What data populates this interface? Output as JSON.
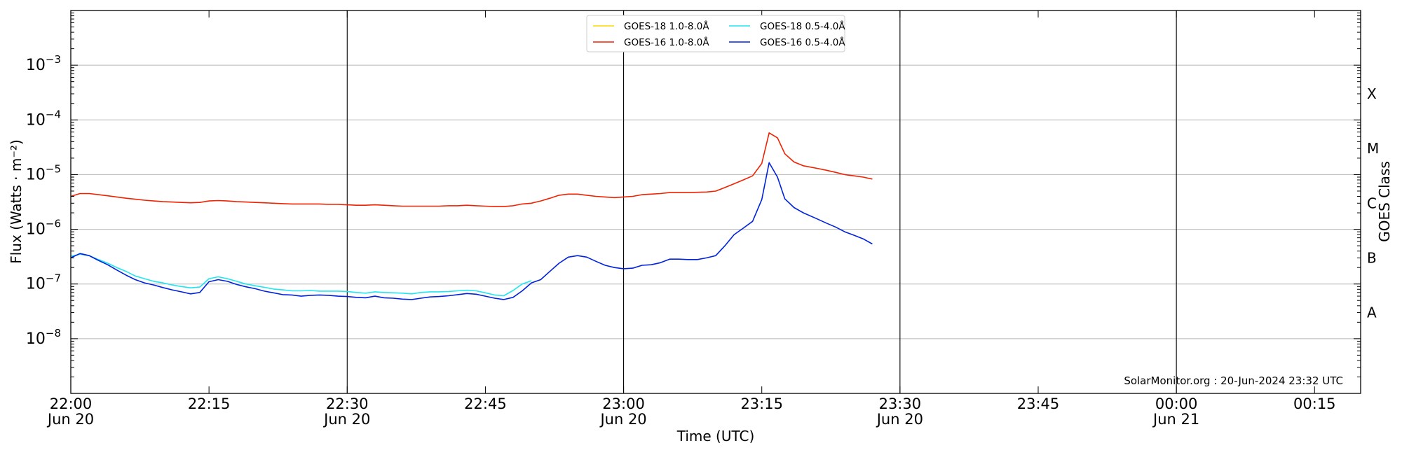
{
  "chart_data": {
    "type": "line",
    "title": "",
    "xlabel": "Time (UTC)",
    "ylabel": "Flux (Watts · m⁻²)",
    "y2label": "GOES Class",
    "yscale": "log",
    "ylim": [
      1e-09,
      0.01
    ],
    "xlim_minutes": [
      0,
      140
    ],
    "x_ticks": [
      {
        "minutes": 0,
        "time": "22:00",
        "date": "Jun 20",
        "vline": false
      },
      {
        "minutes": 15,
        "time": "22:15",
        "date": "",
        "vline": false
      },
      {
        "minutes": 30,
        "time": "22:30",
        "date": "Jun 20",
        "vline": true
      },
      {
        "minutes": 45,
        "time": "22:45",
        "date": "",
        "vline": false
      },
      {
        "minutes": 60,
        "time": "23:00",
        "date": "Jun 20",
        "vline": true
      },
      {
        "minutes": 75,
        "time": "23:15",
        "date": "",
        "vline": false
      },
      {
        "minutes": 90,
        "time": "23:30",
        "date": "Jun 20",
        "vline": true
      },
      {
        "minutes": 105,
        "time": "23:45",
        "date": "",
        "vline": false
      },
      {
        "minutes": 120,
        "time": "00:00",
        "date": "Jun 21",
        "vline": true
      },
      {
        "minutes": 135,
        "time": "00:15",
        "date": "",
        "vline": false
      }
    ],
    "y_ticks": [
      {
        "exp": -8,
        "base": "10",
        "sup": "−8"
      },
      {
        "exp": -7,
        "base": "10",
        "sup": "−7"
      },
      {
        "exp": -6,
        "base": "10",
        "sup": "−6"
      },
      {
        "exp": -5,
        "base": "10",
        "sup": "−5"
      },
      {
        "exp": -4,
        "base": "10",
        "sup": "−4"
      },
      {
        "exp": -3,
        "base": "10",
        "sup": "−3"
      }
    ],
    "goes_classes": [
      {
        "label": "A",
        "value": 3e-08
      },
      {
        "label": "B",
        "value": 3e-07
      },
      {
        "label": "C",
        "value": 3e-06
      },
      {
        "label": "M",
        "value": 3e-05
      },
      {
        "label": "X",
        "value": 0.0003
      }
    ],
    "grid": "horizontal at decades",
    "legend_position": "top-center",
    "legend": [
      {
        "name": "GOES-18 1.0-8.0Å",
        "color": "#ffd700"
      },
      {
        "name": "GOES-18 0.5-4.0Å",
        "color": "#22e5f0"
      },
      {
        "name": "GOES-16 1.0-8.0Å",
        "color": "#ee2200"
      },
      {
        "name": "GOES-16 0.5-4.0Å",
        "color": "#0022dd"
      }
    ],
    "series": [
      {
        "name": "GOES-16 1.0-8.0Å",
        "color": "#ee2200",
        "x": [
          0,
          1,
          2,
          3,
          4,
          5,
          6,
          7,
          8,
          9,
          10,
          11,
          12,
          13,
          14,
          15,
          16,
          17,
          18,
          19,
          20,
          21,
          22,
          23,
          24,
          25,
          26,
          27,
          28,
          29,
          30,
          31,
          32,
          33,
          34,
          35,
          36,
          37,
          38,
          39,
          40,
          41,
          42,
          43,
          44,
          45,
          46,
          47,
          48,
          49,
          50,
          51,
          52,
          53,
          54,
          55,
          56,
          57,
          58,
          59,
          60,
          61,
          62,
          63,
          64,
          65,
          66,
          67,
          68,
          69,
          70,
          71,
          72,
          73,
          74,
          75,
          75.8,
          76.7,
          77.5,
          78.5,
          79.5,
          81,
          82,
          83,
          84,
          85,
          86,
          87
        ],
        "y": [
          4e-06,
          4.5e-06,
          4.5e-06,
          4.3e-06,
          4.1e-06,
          3.9e-06,
          3.7e-06,
          3.55e-06,
          3.4e-06,
          3.3e-06,
          3.2e-06,
          3.15e-06,
          3.1e-06,
          3.05e-06,
          3.1e-06,
          3.3e-06,
          3.35e-06,
          3.3e-06,
          3.2e-06,
          3.15e-06,
          3.1e-06,
          3.05e-06,
          3e-06,
          2.95e-06,
          2.9e-06,
          2.9e-06,
          2.9e-06,
          2.9e-06,
          2.85e-06,
          2.85e-06,
          2.8e-06,
          2.75e-06,
          2.75e-06,
          2.8e-06,
          2.75e-06,
          2.7e-06,
          2.65e-06,
          2.65e-06,
          2.65e-06,
          2.65e-06,
          2.65e-06,
          2.7e-06,
          2.7e-06,
          2.75e-06,
          2.7e-06,
          2.65e-06,
          2.6e-06,
          2.6e-06,
          2.7e-06,
          2.9e-06,
          3e-06,
          3.3e-06,
          3.7e-06,
          4.2e-06,
          4.4e-06,
          4.4e-06,
          4.2e-06,
          4e-06,
          3.9e-06,
          3.8e-06,
          3.9e-06,
          4e-06,
          4.3e-06,
          4.4e-06,
          4.5e-06,
          4.7e-06,
          4.7e-06,
          4.7e-06,
          4.75e-06,
          4.8e-06,
          5e-06,
          5.8e-06,
          6.8e-06,
          8e-06,
          9.5e-06,
          1.6e-05,
          5.8e-05,
          4.7e-05,
          2.4e-05,
          1.7e-05,
          1.45e-05,
          1.3e-05,
          1.2e-05,
          1.1e-05,
          1e-05,
          9.5e-06,
          9e-06,
          8.3e-06
        ]
      },
      {
        "name": "GOES-18 0.5-4.0Å",
        "color": "#22e5f0",
        "x": [
          0,
          1,
          2,
          3,
          4,
          5,
          6,
          7,
          8,
          9,
          10,
          11,
          12,
          13,
          14,
          15,
          16,
          17,
          18,
          19,
          20,
          21,
          22,
          23,
          24,
          25,
          26,
          27,
          28,
          29,
          30,
          31,
          32,
          33,
          34,
          35,
          36,
          37,
          38,
          39,
          40,
          41,
          42,
          43,
          44,
          45,
          46,
          47,
          48,
          49,
          50
        ],
        "y": [
          3.2e-07,
          3.5e-07,
          3.3e-07,
          2.8e-07,
          2.4e-07,
          2e-07,
          1.7e-07,
          1.4e-07,
          1.25e-07,
          1.12e-07,
          1.05e-07,
          9.6e-08,
          9e-08,
          8.5e-08,
          8.8e-08,
          1.25e-07,
          1.35e-07,
          1.25e-07,
          1.12e-07,
          1e-07,
          9.3e-08,
          8.7e-08,
          8.1e-08,
          7.8e-08,
          7.5e-08,
          7.5e-08,
          7.6e-08,
          7.4e-08,
          7.4e-08,
          7.4e-08,
          7.3e-08,
          7e-08,
          6.8e-08,
          7.2e-08,
          7e-08,
          6.9e-08,
          6.8e-08,
          6.6e-08,
          7e-08,
          7.2e-08,
          7.2e-08,
          7.3e-08,
          7.5e-08,
          7.7e-08,
          7.5e-08,
          6.9e-08,
          6.3e-08,
          6.1e-08,
          7.6e-08,
          1e-07,
          1.15e-07
        ]
      },
      {
        "name": "GOES-16 0.5-4.0Å",
        "color": "#0022dd",
        "x": [
          0,
          1,
          2,
          3,
          4,
          5,
          6,
          7,
          8,
          9,
          10,
          11,
          12,
          13,
          14,
          15,
          16,
          17,
          18,
          19,
          20,
          21,
          22,
          23,
          24,
          25,
          26,
          27,
          28,
          29,
          30,
          31,
          32,
          33,
          34,
          35,
          36,
          37,
          38,
          39,
          40,
          41,
          42,
          43,
          44,
          45,
          46,
          47,
          48,
          49,
          50,
          51,
          52,
          53,
          54,
          55,
          56,
          57,
          58,
          59,
          60,
          61,
          62,
          63,
          64,
          65,
          66,
          67,
          68,
          69,
          70,
          71,
          72,
          73,
          74,
          75,
          75.8,
          76.7,
          77.5,
          78.5,
          79.5,
          81,
          82,
          83,
          84,
          85,
          86,
          87
        ],
        "y": [
          3e-07,
          3.6e-07,
          3.3e-07,
          2.7e-07,
          2.25e-07,
          1.8e-07,
          1.45e-07,
          1.2e-07,
          1.05e-07,
          9.6e-08,
          8.6e-08,
          7.8e-08,
          7.2e-08,
          6.6e-08,
          7e-08,
          1.1e-07,
          1.2e-07,
          1.12e-07,
          9.8e-08,
          8.9e-08,
          8.2e-08,
          7.4e-08,
          6.9e-08,
          6.4e-08,
          6.3e-08,
          6e-08,
          6.2e-08,
          6.3e-08,
          6.2e-08,
          6e-08,
          5.9e-08,
          5.7e-08,
          5.6e-08,
          6e-08,
          5.6e-08,
          5.5e-08,
          5.3e-08,
          5.2e-08,
          5.5e-08,
          5.8e-08,
          5.9e-08,
          6.1e-08,
          6.4e-08,
          6.7e-08,
          6.5e-08,
          6e-08,
          5.5e-08,
          5.2e-08,
          5.7e-08,
          7.5e-08,
          1.05e-07,
          1.2e-07,
          1.7e-07,
          2.4e-07,
          3.1e-07,
          3.3e-07,
          3.1e-07,
          2.6e-07,
          2.2e-07,
          2e-07,
          1.9e-07,
          1.95e-07,
          2.2e-07,
          2.25e-07,
          2.45e-07,
          2.85e-07,
          2.85e-07,
          2.8e-07,
          2.8e-07,
          3e-07,
          3.3e-07,
          5e-07,
          8e-07,
          1.05e-06,
          1.4e-06,
          3.5e-06,
          1.65e-05,
          9e-06,
          3.6e-06,
          2.5e-06,
          2e-06,
          1.55e-06,
          1.3e-06,
          1.1e-06,
          9e-07,
          7.8e-07,
          6.7e-07,
          5.4e-07
        ]
      }
    ],
    "annotation": "SolarMonitor.org : 20-Jun-2024 23:32 UTC"
  }
}
